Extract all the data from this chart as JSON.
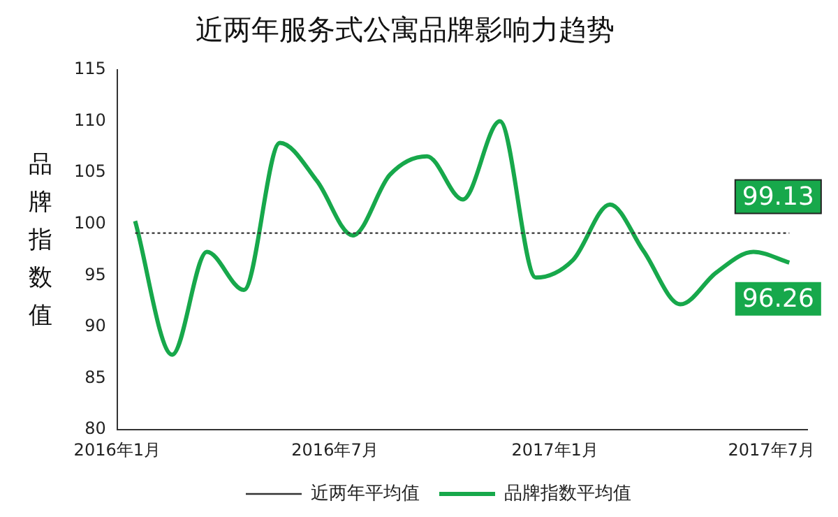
{
  "chart_data": {
    "type": "line",
    "title": "近两年服务式公寓品牌影响力趋势",
    "ylabel": "品牌指数值",
    "x": [
      "2016-01-16",
      "2016-02-16",
      "2016-03-16",
      "2016-04-16",
      "2016-05-16",
      "2016-06-16",
      "2016-07-16",
      "2016-08-16",
      "2016-09-16",
      "2016-10-16",
      "2016-11-16",
      "2016-12-16",
      "2017-01-16",
      "2017-02-16",
      "2017-03-16",
      "2017-04-16",
      "2017-05-16",
      "2017-06-16",
      "2017-07-16"
    ],
    "series": [
      {
        "name": "近两年平均值",
        "color": "#333333",
        "line_style": "dotted",
        "values": [
          99.13,
          99.13,
          99.13,
          99.13,
          99.13,
          99.13,
          99.13,
          99.13,
          99.13,
          99.13,
          99.13,
          99.13,
          99.13,
          99.13,
          99.13,
          99.13,
          99.13,
          99.13,
          99.13
        ],
        "value_labels": [
          null,
          null,
          null,
          null,
          null,
          null,
          null,
          null,
          null,
          null,
          null,
          null,
          null,
          null,
          null,
          null,
          null,
          null,
          "99.13"
        ]
      },
      {
        "name": "品牌指数平均值",
        "color": "#17a84b",
        "line_style": "solid",
        "values": [
          100.3,
          87.3,
          97.3,
          93.6,
          107.9,
          104.2,
          98.9,
          104.8,
          106.6,
          102.4,
          110.0,
          94.8,
          96.5,
          101.9,
          97.4,
          92.2,
          95.3,
          97.3,
          96.26
        ],
        "value_labels": [
          null,
          null,
          null,
          null,
          null,
          null,
          null,
          null,
          null,
          null,
          null,
          null,
          null,
          null,
          null,
          null,
          null,
          null,
          "96.26"
        ]
      }
    ],
    "xlim": [
      "2016-01-01",
      "2017-07-31"
    ],
    "xticks": [
      {
        "value": "2016-01-01",
        "label": "2016年1月"
      },
      {
        "value": "2016-07-01",
        "label": "2016年7月"
      },
      {
        "value": "2017-01-01",
        "label": "2017年1月"
      },
      {
        "value": "2017-07-01",
        "label": "2017年7月"
      }
    ],
    "ylim": [
      80,
      115
    ],
    "yticks": [
      80,
      85,
      90,
      95,
      100,
      105,
      110,
      115
    ],
    "grid": false,
    "legend": "bottom",
    "marker": "none"
  }
}
